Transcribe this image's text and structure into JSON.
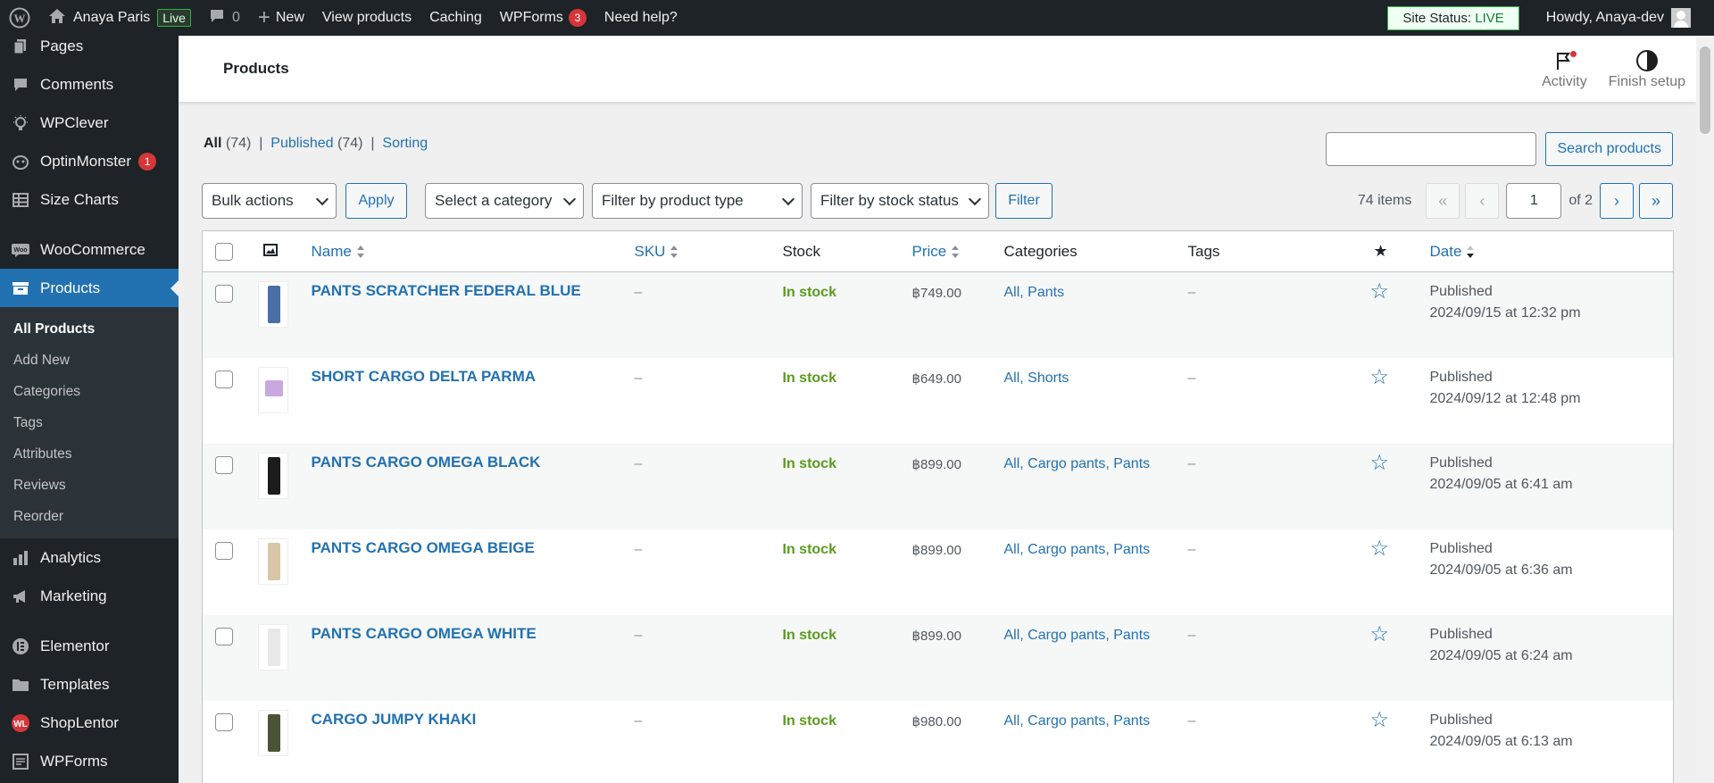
{
  "adminbar": {
    "site_name": "Anaya Paris",
    "live_label": "Live",
    "comments_count": "0",
    "new_label": "New",
    "view_products": "View products",
    "caching": "Caching",
    "wpforms": "WPForms",
    "wpforms_count": "3",
    "need_help": "Need help?",
    "site_status_prefix": "Site Status:",
    "site_status_value": "LIVE",
    "howdy": "Howdy, Anaya-dev"
  },
  "sidebar": {
    "items_top": [
      {
        "label": "Pages",
        "icon": "pages-icon"
      },
      {
        "label": "Comments",
        "icon": "comments-icon"
      },
      {
        "label": "WPClever",
        "icon": "wpclever-icon"
      },
      {
        "label": "OptinMonster",
        "icon": "optinmonster-icon",
        "badge": "1"
      },
      {
        "label": "Size Charts",
        "icon": "size-charts-icon"
      }
    ],
    "woocommerce": "WooCommerce",
    "products": "Products",
    "submenu": [
      "All Products",
      "Add New",
      "Categories",
      "Tags",
      "Attributes",
      "Reviews",
      "Reorder"
    ],
    "items_bottom": [
      {
        "label": "Analytics"
      },
      {
        "label": "Marketing"
      },
      {
        "label": "Elementor"
      },
      {
        "label": "Templates"
      },
      {
        "label": "ShopLentor"
      },
      {
        "label": "WPForms"
      }
    ]
  },
  "header": {
    "title": "Products",
    "activity": "Activity",
    "finish_setup": "Finish setup"
  },
  "views": {
    "all": "All",
    "all_count": "(74)",
    "published": "Published",
    "published_count": "(74)",
    "sorting": "Sorting"
  },
  "search": {
    "button": "Search products",
    "value": ""
  },
  "tablenav": {
    "bulk_actions": "Bulk actions",
    "apply": "Apply",
    "category": "Select a category",
    "product_type": "Filter by product type",
    "stock_status": "Filter by stock status",
    "filter": "Filter",
    "items": "74 items",
    "first": "«",
    "prev": "‹",
    "current_page": "1",
    "of_pages": "of 2",
    "next": "›",
    "last": "»"
  },
  "columns": {
    "name": "Name",
    "sku": "SKU",
    "stock": "Stock",
    "price": "Price",
    "categories": "Categories",
    "tags": "Tags",
    "date": "Date"
  },
  "products": [
    {
      "name": "PANTS SCRATCHER FEDERAL BLUE",
      "sku": "–",
      "stock": "In stock",
      "price": "฿749.00",
      "categories": "All, Pants",
      "tags": "–",
      "status": "Published",
      "date": "2024/09/15 at 12:32 pm",
      "thumb_color": "#4a6fa5"
    },
    {
      "name": "SHORT CARGO DELTA PARMA",
      "sku": "–",
      "stock": "In stock",
      "price": "฿649.00",
      "categories": "All, Shorts",
      "tags": "–",
      "status": "Published",
      "date": "2024/09/12 at 12:48 pm",
      "thumb_color": "#c9a8e0"
    },
    {
      "name": "PANTS CARGO OMEGA BLACK",
      "sku": "–",
      "stock": "In stock",
      "price": "฿899.00",
      "categories": "All, Cargo pants, Pants",
      "tags": "–",
      "status": "Published",
      "date": "2024/09/05 at 6:41 am",
      "thumb_color": "#1c1c1c"
    },
    {
      "name": "PANTS CARGO OMEGA BEIGE",
      "sku": "–",
      "stock": "In stock",
      "price": "฿899.00",
      "categories": "All, Cargo pants, Pants",
      "tags": "–",
      "status": "Published",
      "date": "2024/09/05 at 6:36 am",
      "thumb_color": "#d8c7a6"
    },
    {
      "name": "PANTS CARGO OMEGA WHITE",
      "sku": "–",
      "stock": "In stock",
      "price": "฿899.00",
      "categories": "All, Cargo pants, Pants",
      "tags": "–",
      "status": "Published",
      "date": "2024/09/05 at 6:24 am",
      "thumb_color": "#e8e8e8"
    },
    {
      "name": "CARGO JUMPY KHAKI",
      "sku": "–",
      "stock": "In stock",
      "price": "฿980.00",
      "categories": "All, Cargo pants, Pants",
      "tags": "–",
      "status": "Published",
      "date": "2024/09/05 at 6:13 am",
      "thumb_color": "#4b5236"
    }
  ],
  "colors": {
    "accent": "#2271b1",
    "sidebar_bg": "#1d2327",
    "in_stock": "#5b9a1d",
    "badge": "#d63638"
  }
}
